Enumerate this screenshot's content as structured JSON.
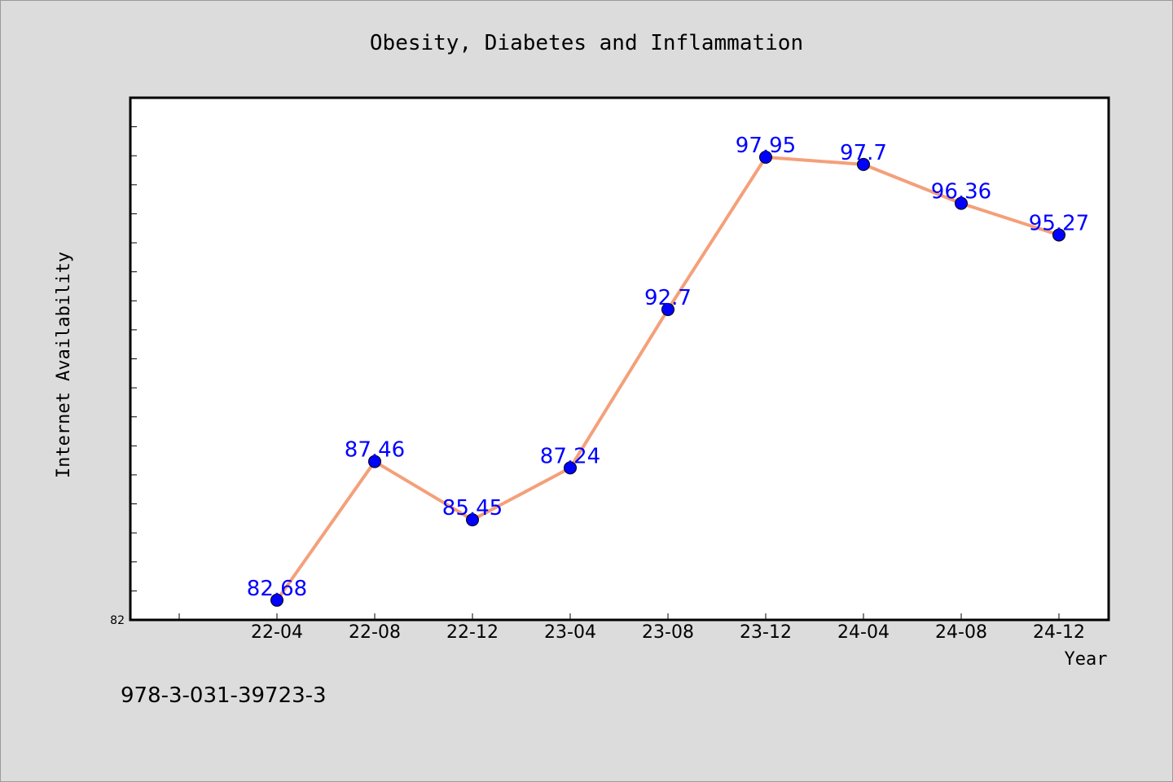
{
  "chart_data": {
    "type": "line",
    "title": "Obesity, Diabetes and Inflammation",
    "xlabel": "Year",
    "ylabel": "Internet Availability",
    "categories": [
      "22-04",
      "22-08",
      "22-12",
      "23-04",
      "23-08",
      "23-12",
      "24-04",
      "24-08",
      "24-12"
    ],
    "series": [
      {
        "values": [
          82.68,
          87.46,
          85.45,
          87.24,
          92.7,
          97.95,
          97.7,
          96.36,
          95.27
        ]
      }
    ],
    "data_labels": [
      "82.68",
      "87.46",
      "85.45",
      "87.24",
      "92.7",
      "97.95",
      "97.7",
      "96.36",
      "95.27"
    ],
    "ylim": [
      82,
      100
    ],
    "y_min_label": "82",
    "grid": false,
    "legend": "none",
    "colors": {
      "line": "#f4a07a",
      "marker": "#0000ff",
      "data_label": "#0000ff",
      "background": "#dcdcdc",
      "plot": "#ffffff"
    }
  },
  "footer_text": "978-3-031-39723-3"
}
